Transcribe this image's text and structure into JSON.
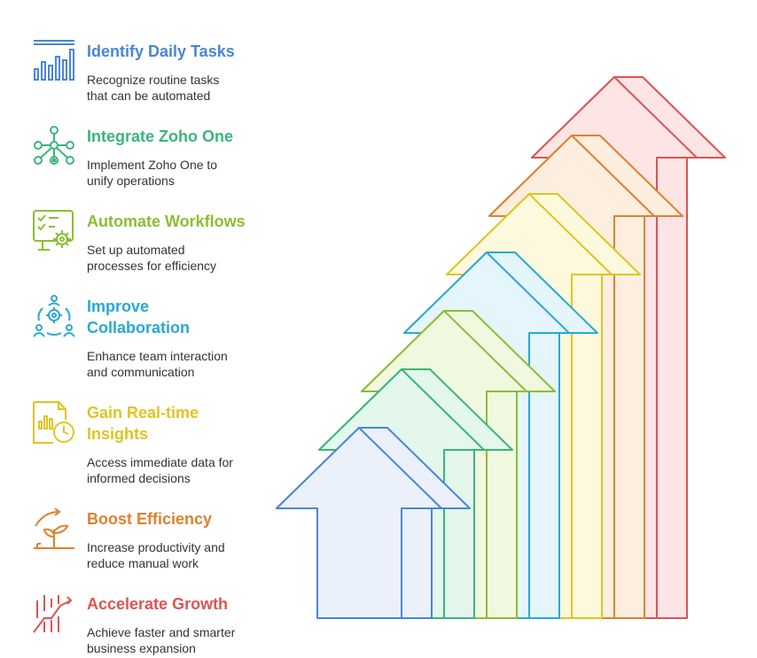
{
  "steps": [
    {
      "title": "Identify Daily Tasks",
      "desc_line1": "Recognize routine tasks",
      "desc_line2": "that can be automated",
      "color": "#4a86d8",
      "fill": "#ebf1fb",
      "icon": "bar-chart-icon"
    },
    {
      "title": "Integrate Zoho One",
      "desc_line1": "Implement Zoho One to",
      "desc_line2": "unify operations",
      "color": "#3bb57a",
      "fill": "#e3f7ec",
      "icon": "network-nodes-icon"
    },
    {
      "title": "Automate Workflows",
      "desc_line1": "Set up automated",
      "desc_line2": "processes for efficiency",
      "color": "#8cbe32",
      "fill": "#f1f8e0",
      "icon": "checklist-gear-icon"
    },
    {
      "title_line1": "Improve",
      "title_line2": "Collaboration",
      "desc_line1": "Enhance team interaction",
      "desc_line2": "and communication",
      "color": "#2aa8d4",
      "fill": "#e4f5fb",
      "icon": "team-gear-icon"
    },
    {
      "title_line1": "Gain Real-time",
      "title_line2": "Insights",
      "desc_line1": "Access immediate data for",
      "desc_line2": "informed decisions",
      "color": "#e0c420",
      "fill": "#fdf9dc",
      "icon": "report-clock-icon"
    },
    {
      "title": "Boost Efficiency",
      "desc_line1": "Increase productivity and",
      "desc_line2": "reduce manual work",
      "color": "#e0802e",
      "fill": "#fdeee0",
      "icon": "growing-plant-icon"
    },
    {
      "title": "Accelerate Growth",
      "desc_line1": "Achieve faster and smarter",
      "desc_line2": "business expansion",
      "color": "#e05353",
      "fill": "#fde5e5",
      "icon": "rising-chart-icon"
    }
  ]
}
